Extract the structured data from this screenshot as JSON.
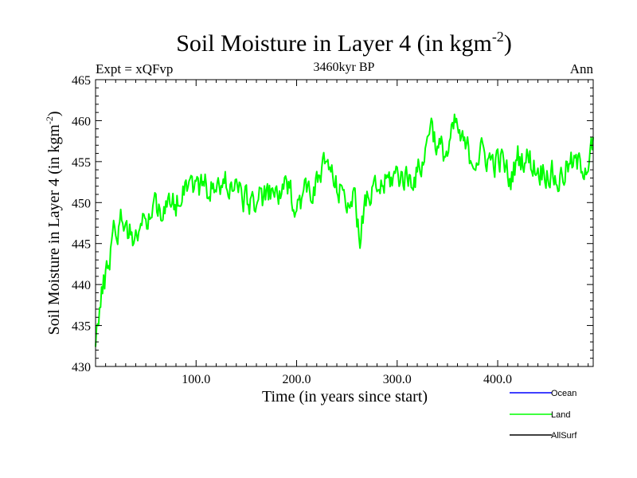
{
  "chart_data": {
    "type": "line",
    "title": "Soil Moisture in Layer 4 (in kgm",
    "title_superscript": "-2",
    "title_close": ")",
    "subtitle": "3460kyr BP",
    "left_label": "Expt = xQFvp",
    "right_label": "Ann",
    "xlabel": "Time (in years since start)",
    "ylabel": "Soil Moisture in Layer 4 (in kgm",
    "ylabel_superscript": "-2",
    "ylabel_close": ")",
    "xlim": [
      0,
      495
    ],
    "ylim": [
      430,
      465
    ],
    "x_ticks": [
      100,
      200,
      300,
      400
    ],
    "x_tick_labels": [
      "100.0",
      "200.0",
      "300.0",
      "400.0"
    ],
    "y_ticks": [
      430,
      435,
      440,
      445,
      450,
      455,
      460,
      465
    ],
    "y_tick_labels": [
      "430",
      "435",
      "440",
      "445",
      "450",
      "455",
      "460",
      "465"
    ],
    "series": [
      {
        "name": "Ocean",
        "color": "#0000ff",
        "values": []
      },
      {
        "name": "Land",
        "color": "#00ff00",
        "key_points": [
          [
            0,
            434
          ],
          [
            3,
            436
          ],
          [
            6,
            438.5
          ],
          [
            10,
            441
          ],
          [
            14,
            443.5
          ],
          [
            18,
            447.5
          ],
          [
            22,
            446.5
          ],
          [
            27,
            448.5
          ],
          [
            35,
            446
          ],
          [
            45,
            446.5
          ],
          [
            55,
            449
          ],
          [
            60,
            450
          ],
          [
            70,
            449
          ],
          [
            80,
            450
          ],
          [
            90,
            453
          ],
          [
            100,
            452
          ],
          [
            110,
            452
          ],
          [
            120,
            451.5
          ],
          [
            130,
            452.5
          ],
          [
            140,
            452
          ],
          [
            150,
            450
          ],
          [
            160,
            450.5
          ],
          [
            170,
            450.5
          ],
          [
            180,
            451
          ],
          [
            190,
            451.5
          ],
          [
            200,
            450
          ],
          [
            210,
            451.5
          ],
          [
            220,
            452
          ],
          [
            230,
            455
          ],
          [
            240,
            451.5
          ],
          [
            250,
            451
          ],
          [
            257,
            450
          ],
          [
            263,
            446.5
          ],
          [
            270,
            450
          ],
          [
            280,
            451.5
          ],
          [
            290,
            452.5
          ],
          [
            300,
            453.5
          ],
          [
            310,
            453
          ],
          [
            320,
            453.5
          ],
          [
            328,
            456
          ],
          [
            333,
            460.5
          ],
          [
            340,
            456.5
          ],
          [
            350,
            456
          ],
          [
            358,
            459.5
          ],
          [
            365,
            457
          ],
          [
            375,
            455.5
          ],
          [
            385,
            456
          ],
          [
            395,
            455
          ],
          [
            405,
            455
          ],
          [
            412,
            452.5
          ],
          [
            420,
            455.5
          ],
          [
            430,
            455.5
          ],
          [
            440,
            454
          ],
          [
            450,
            454
          ],
          [
            460,
            452.5
          ],
          [
            470,
            454.5
          ],
          [
            480,
            454.5
          ],
          [
            490,
            455
          ],
          [
            495,
            457
          ]
        ],
        "noise_amplitude": 1.6,
        "point_count": 496
      },
      {
        "name": "AllSurf",
        "color": "#000000",
        "values": []
      }
    ],
    "legend_position": "bottom-right"
  }
}
